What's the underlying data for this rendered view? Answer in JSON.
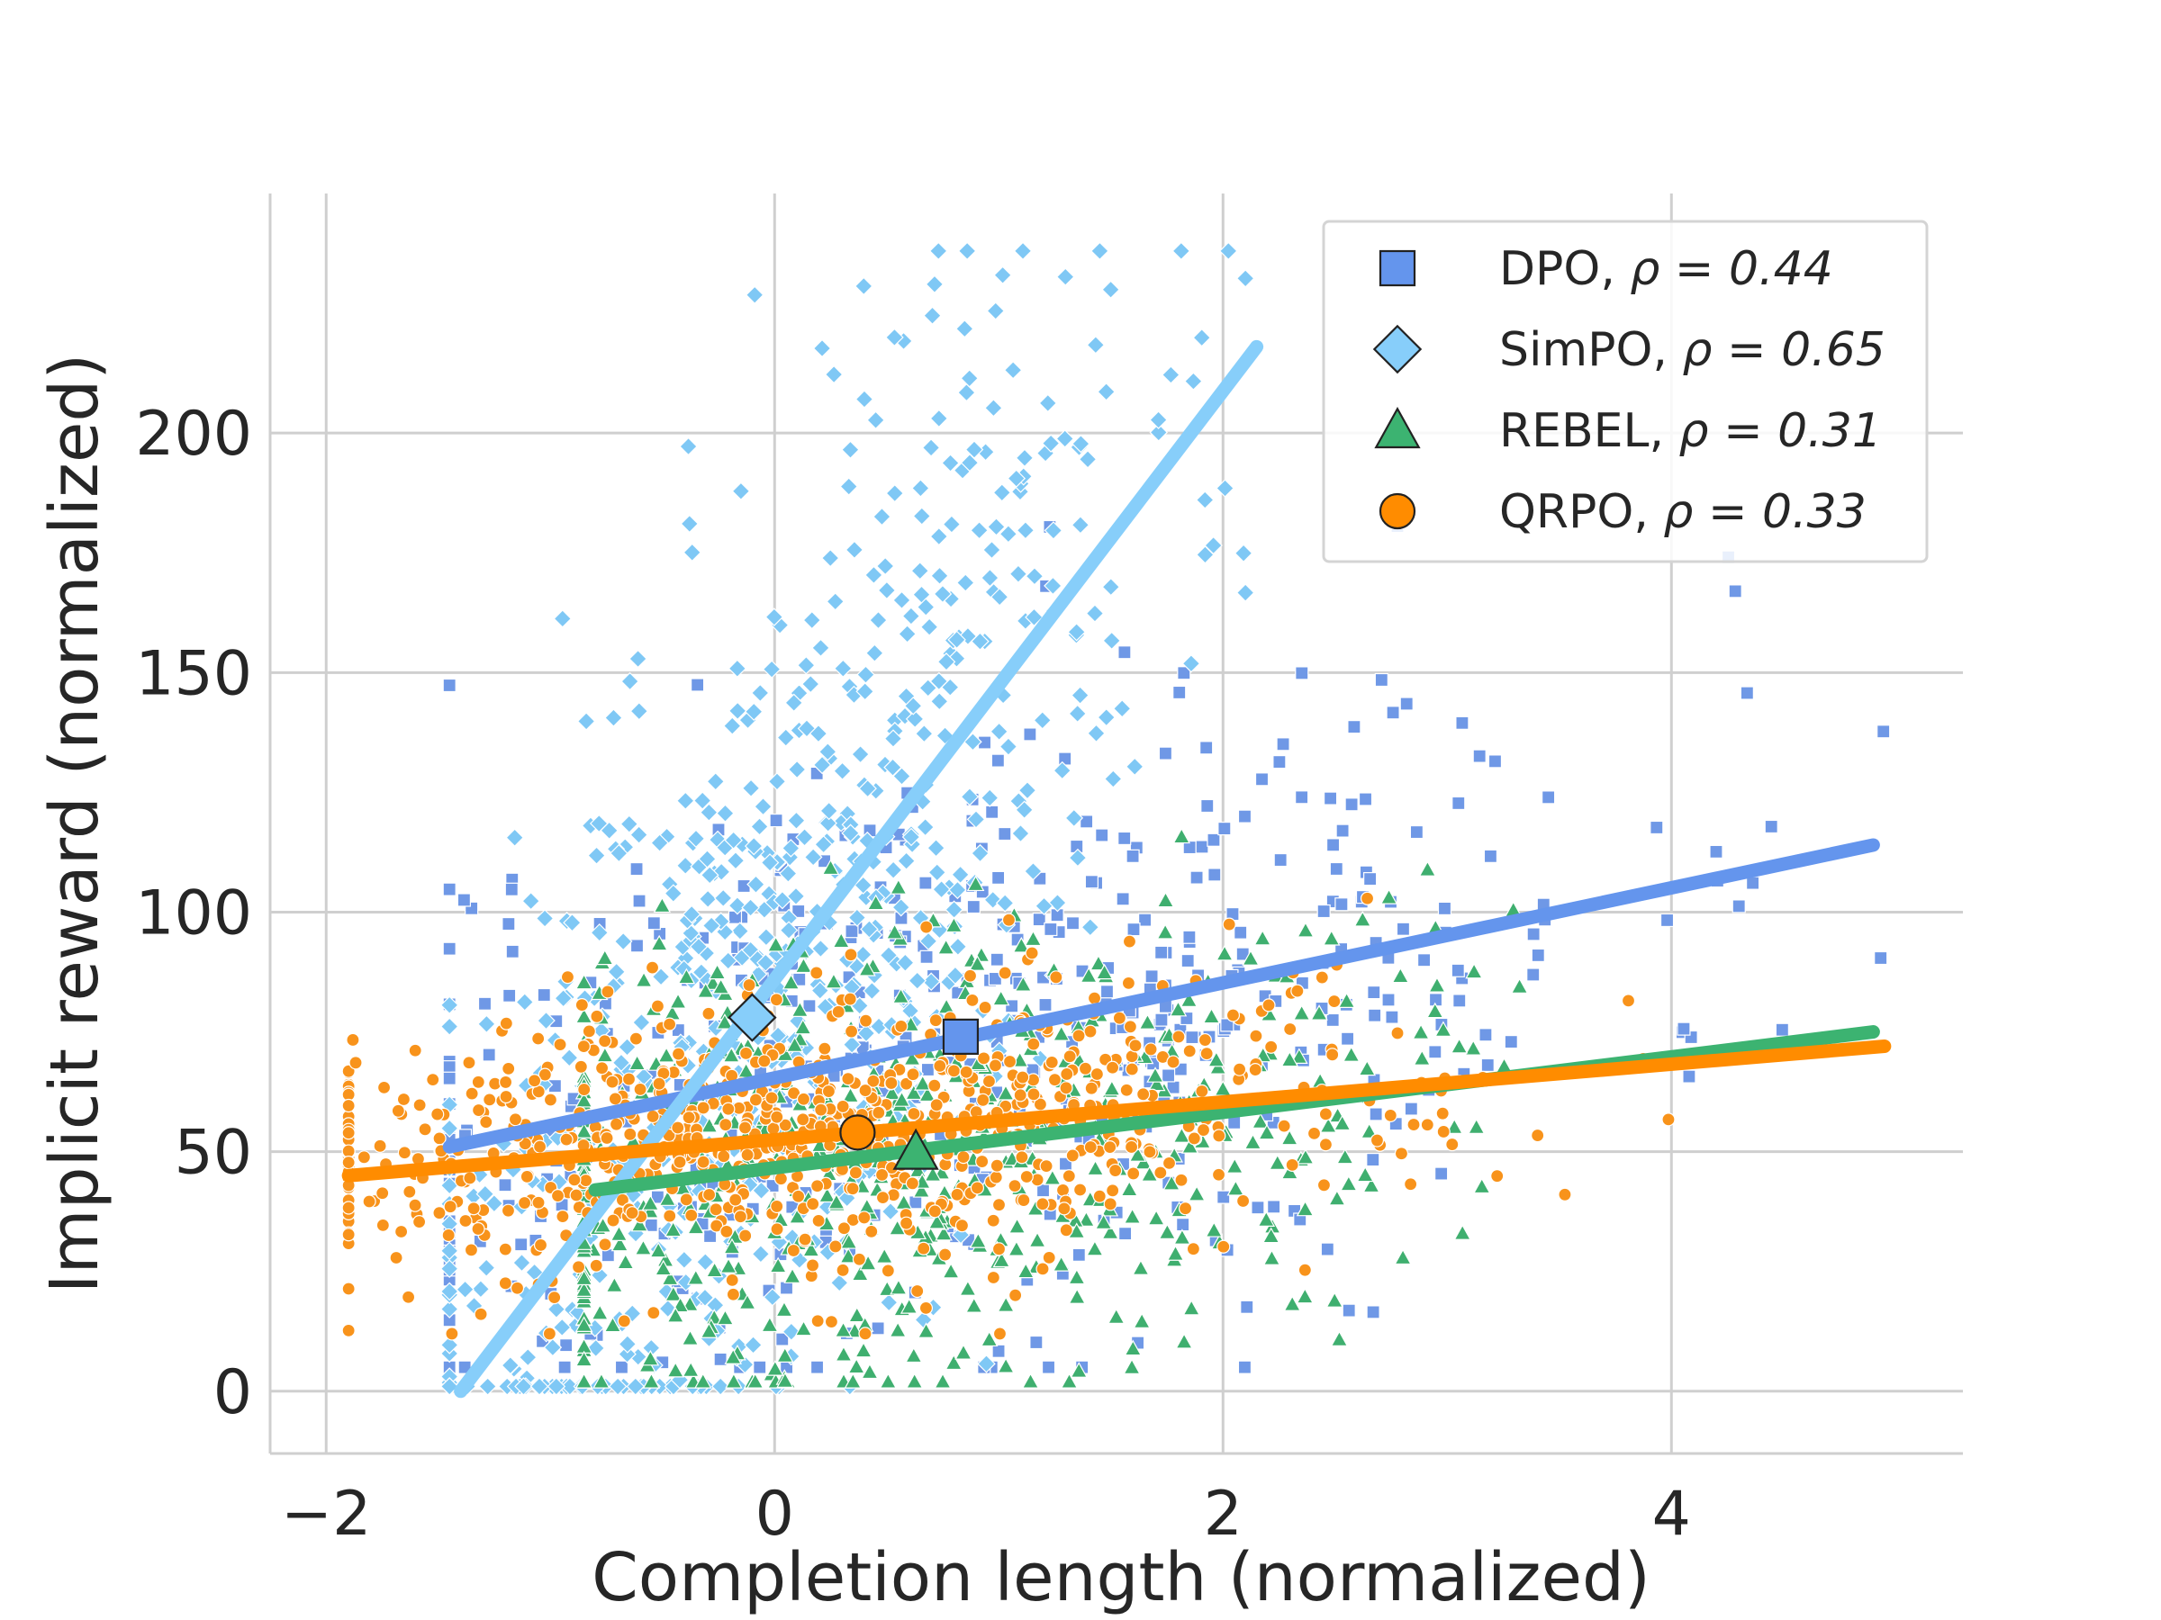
{
  "chart_data": {
    "type": "scatter",
    "xlabel": "Completion length (normalized)",
    "ylabel": "Implicit reward (normalized)",
    "xlim": [
      -2.25,
      5.3
    ],
    "ylim": [
      -13,
      250
    ],
    "x_ticks": [
      -2,
      0,
      2,
      4
    ],
    "x_tick_labels": [
      "−2",
      "0",
      "2",
      "4"
    ],
    "y_ticks": [
      0,
      50,
      100,
      150,
      200
    ],
    "y_tick_labels": [
      "0",
      "50",
      "100",
      "150",
      "200"
    ],
    "grid": true,
    "legend_placement": "top-right",
    "series": [
      {
        "key": "dpo",
        "legend_label": "DPO, ",
        "rho_text": "ρ = 0.44",
        "marker": "square",
        "color": "#6495ED",
        "point_color": "#6f98e6",
        "fit_line": {
          "x": [
            -1.45,
            4.9
          ],
          "y": [
            51,
            114
          ]
        },
        "centroid": {
          "x": 0.83,
          "y": 74
        },
        "scatter": {
          "count": 520,
          "seed": 11,
          "x_mean": 0.9,
          "x_sd": 1.45,
          "x_min": -1.45,
          "x_max": 4.95,
          "y_mean_at_x0": 66,
          "slope": 10,
          "y_sd": 33,
          "y_min": 5,
          "y_max": 215
        }
      },
      {
        "key": "simpo",
        "legend_label": "SimPO, ",
        "rho_text": "ρ = 0.65",
        "marker": "diamond",
        "color": "#87CEFA",
        "point_color": "#7fc8f5",
        "fit_line": {
          "x": [
            -1.4,
            2.15
          ],
          "y": [
            0,
            218
          ]
        },
        "centroid": {
          "x": -0.1,
          "y": 78
        },
        "scatter": {
          "count": 700,
          "seed": 23,
          "x_mean": -0.05,
          "x_sd": 0.85,
          "x_min": -1.45,
          "x_max": 2.1,
          "y_mean_at_x0": 86,
          "slope": 55,
          "y_sd": 48,
          "y_min": 1,
          "y_max": 238
        }
      },
      {
        "key": "rebel",
        "legend_label": "REBEL, ",
        "rho_text": "ρ = 0.31",
        "marker": "triangle",
        "color": "#3CB371",
        "point_color": "#3faf6f",
        "fit_line": {
          "x": [
            -0.8,
            4.9
          ],
          "y": [
            42,
            75
          ]
        },
        "centroid": {
          "x": 0.63,
          "y": 50
        },
        "scatter": {
          "count": 640,
          "seed": 37,
          "x_mean": 0.5,
          "x_sd": 1.15,
          "x_min": -0.85,
          "x_max": 4.95,
          "y_mean_at_x0": 47,
          "slope": 6,
          "y_sd": 25,
          "y_min": 2,
          "y_max": 125
        }
      },
      {
        "key": "qrpo",
        "legend_label": "QRPO, ",
        "rho_text": "ρ = 0.33",
        "marker": "circle",
        "color": "#FF8C00",
        "point_color": "#f8931b",
        "fit_line": {
          "x": [
            -1.9,
            4.95
          ],
          "y": [
            45,
            72
          ]
        },
        "centroid": {
          "x": 0.37,
          "y": 54
        },
        "scatter": {
          "count": 820,
          "seed": 53,
          "x_mean": 0.25,
          "x_sd": 1.3,
          "x_min": -1.9,
          "x_max": 4.95,
          "y_mean_at_x0": 53,
          "slope": 4,
          "y_sd": 15,
          "y_min": 12,
          "y_max": 105
        }
      }
    ]
  }
}
